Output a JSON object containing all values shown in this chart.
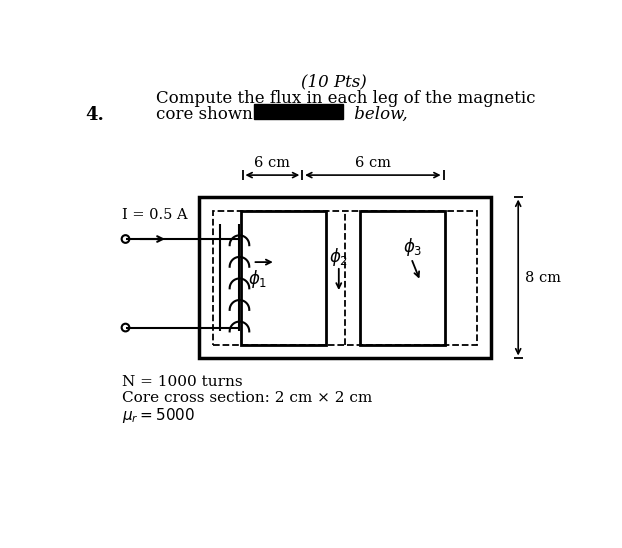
{
  "title_handwritten": "(10 Pts)",
  "problem_number": "4.",
  "text_line1": "Compute the flux in each leg of the magnetic",
  "text_line2": "core shown",
  "text_line2b": "below,",
  "dim_6cm_left": "6 cm",
  "dim_6cm_right": "6 cm",
  "dim_8cm": "8 cm",
  "current_label": "I = 0.5 A",
  "note1": "N = 1000 turns",
  "note2": "Core cross section: 2 cm × 2 cm",
  "note3": "μ_r = 5000",
  "bg_color": "#ffffff",
  "text_color": "#000000"
}
